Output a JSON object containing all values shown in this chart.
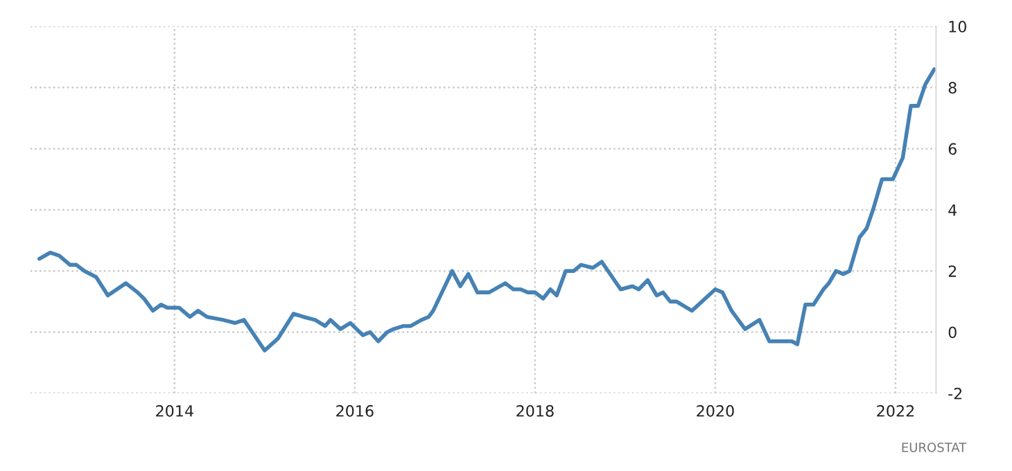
{
  "chart_data": {
    "type": "line",
    "x": [
      2012.5,
      2012.62,
      2012.72,
      2012.84,
      2012.91,
      2013.0,
      2013.13,
      2013.26,
      2013.46,
      2013.59,
      2013.66,
      2013.76,
      2013.85,
      2013.92,
      2014.05,
      2014.17,
      2014.26,
      2014.36,
      2014.54,
      2014.67,
      2014.77,
      2015.0,
      2015.15,
      2015.32,
      2015.43,
      2015.56,
      2015.67,
      2015.73,
      2015.84,
      2015.95,
      2016.09,
      2016.17,
      2016.26,
      2016.36,
      2016.43,
      2016.54,
      2016.62,
      2016.74,
      2016.82,
      2016.87,
      2017.08,
      2017.17,
      2017.26,
      2017.36,
      2017.49,
      2017.67,
      2017.76,
      2017.84,
      2017.92,
      2018.0,
      2018.09,
      2018.17,
      2018.24,
      2018.34,
      2018.43,
      2018.51,
      2018.64,
      2018.74,
      2018.95,
      2019.08,
      2019.15,
      2019.25,
      2019.35,
      2019.42,
      2019.5,
      2019.57,
      2019.74,
      2020.0,
      2020.08,
      2020.18,
      2020.33,
      2020.49,
      2020.6,
      2020.74,
      2020.85,
      2020.91,
      2021.0,
      2021.09,
      2021.2,
      2021.26,
      2021.34,
      2021.42,
      2021.49,
      2021.6,
      2021.68,
      2021.75,
      2021.85,
      2021.97,
      2022.08,
      2022.17,
      2022.25,
      2022.33,
      2022.43
    ],
    "series": [
      {
        "color": "#4682b4",
        "values": [
          2.4,
          2.6,
          2.5,
          2.2,
          2.2,
          2.0,
          1.8,
          1.2,
          1.6,
          1.3,
          1.1,
          0.7,
          0.9,
          0.8,
          0.8,
          0.5,
          0.7,
          0.5,
          0.4,
          0.3,
          0.4,
          -0.6,
          -0.2,
          0.6,
          0.5,
          0.4,
          0.2,
          0.4,
          0.1,
          0.3,
          -0.1,
          0.0,
          -0.3,
          0.0,
          0.1,
          0.2,
          0.2,
          0.4,
          0.5,
          0.7,
          2.0,
          1.5,
          1.9,
          1.3,
          1.3,
          1.6,
          1.4,
          1.4,
          1.3,
          1.3,
          1.1,
          1.4,
          1.2,
          2.0,
          2.0,
          2.2,
          2.1,
          2.3,
          1.4,
          1.5,
          1.4,
          1.7,
          1.2,
          1.3,
          1.0,
          1.0,
          0.7,
          1.4,
          1.3,
          0.7,
          0.1,
          0.4,
          -0.3,
          -0.3,
          -0.3,
          -0.4,
          0.9,
          0.9,
          1.4,
          1.6,
          2.0,
          1.9,
          2.0,
          3.1,
          3.4,
          4.0,
          5.0,
          5.0,
          5.7,
          7.4,
          7.4,
          8.1,
          8.6
        ]
      }
    ],
    "xlim": [
      2012.4,
      2022.45
    ],
    "xticks": [
      2014,
      2016,
      2018,
      2020,
      2022
    ],
    "ylim": [
      -2,
      10
    ],
    "yticks": [
      -2,
      0,
      2,
      4,
      6,
      8,
      10
    ],
    "grid": true,
    "line_style": "solid",
    "marker": "none",
    "annotations": [
      "EUROSTAT"
    ]
  }
}
